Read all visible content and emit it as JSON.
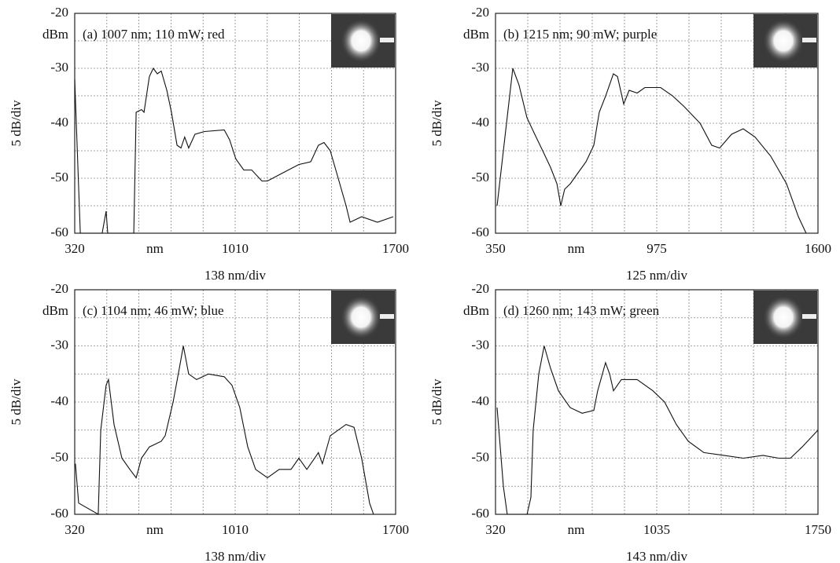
{
  "chart_data": [
    {
      "type": "line",
      "annotation": "(a) 1007 nm; 110 mW; red",
      "y_unit": "dBm",
      "x_unit": "nm",
      "ylabel": "5 dB/div",
      "xlabel": "138 nm/div",
      "color": "#111111",
      "grid": true,
      "xlim": [
        320,
        1700
      ],
      "xticks": [
        320,
        1010,
        1700
      ],
      "ylim": [
        -60,
        -20
      ],
      "yticks": [
        -60,
        -50,
        -40,
        -30,
        -20
      ],
      "x": [
        320,
        344,
        371,
        438,
        455,
        462,
        506,
        574,
        584,
        607,
        618,
        641,
        658,
        675,
        692,
        716,
        736,
        760,
        777,
        793,
        810,
        837,
        878,
        963,
        986,
        1013,
        1047,
        1081,
        1125,
        1149,
        1216,
        1284,
        1335,
        1368,
        1392,
        1419,
        1453,
        1487,
        1504,
        1554,
        1622,
        1690
      ],
      "values": [
        -32,
        -60,
        -60,
        -60,
        -56,
        -60,
        -60,
        -60,
        -38,
        -37.5,
        -38,
        -31.5,
        -30,
        -31,
        -30.5,
        -34,
        -38,
        -44,
        -44.5,
        -42.5,
        -44.5,
        -42,
        -41.5,
        -41.2,
        -43,
        -46.5,
        -48.5,
        -48.5,
        -50.5,
        -50.5,
        -49,
        -47.5,
        -47,
        -44,
        -43.5,
        -45,
        -50,
        -55,
        -58,
        -57,
        -58,
        -57
      ]
    },
    {
      "type": "line",
      "annotation": "(b) 1215 nm; 90 mW; purple",
      "y_unit": "dBm",
      "x_unit": "nm",
      "ylabel": "5 dB/div",
      "xlabel": "125 nm/div",
      "color": "#111111",
      "grid": true,
      "xlim": [
        350,
        1600
      ],
      "xticks": [
        350,
        975,
        1600
      ],
      "ylim": [
        -60,
        -20
      ],
      "yticks": [
        -60,
        -50,
        -40,
        -30,
        -20
      ],
      "x": [
        356,
        417,
        441,
        472,
        502,
        533,
        563,
        588,
        603,
        618,
        640,
        670,
        701,
        731,
        752,
        777,
        807,
        823,
        847,
        868,
        899,
        929,
        990,
        1036,
        1082,
        1143,
        1188,
        1219,
        1265,
        1310,
        1356,
        1417,
        1478,
        1524,
        1554
      ],
      "values": [
        -55,
        -30,
        -33,
        -39,
        -42,
        -45,
        -48,
        -51,
        -55,
        -52,
        -51,
        -49,
        -47,
        -44,
        -38,
        -35,
        -31,
        -31.5,
        -36.5,
        -34,
        -34.5,
        -33.5,
        -33.5,
        -35,
        -37,
        -40,
        -44,
        -44.5,
        -42,
        -41,
        -42.5,
        -46,
        -51,
        -57,
        -60
      ]
    },
    {
      "type": "line",
      "annotation": "(c) 1104 nm; 46 mW; blue",
      "y_unit": "dBm",
      "x_unit": "nm",
      "ylabel": "5 dB/div",
      "xlabel": "138 nm/div",
      "color": "#111111",
      "grid": true,
      "xlim": [
        320,
        1700
      ],
      "xticks": [
        320,
        1010,
        1700
      ],
      "ylim": [
        -60,
        -20
      ],
      "yticks": [
        -60,
        -50,
        -40,
        -30,
        -20
      ],
      "x": [
        323,
        337,
        421,
        432,
        455,
        465,
        489,
        523,
        557,
        584,
        607,
        641,
        692,
        709,
        743,
        770,
        787,
        810,
        844,
        895,
        963,
        996,
        1030,
        1064,
        1098,
        1149,
        1199,
        1250,
        1284,
        1318,
        1352,
        1368,
        1385,
        1419,
        1487,
        1521,
        1554,
        1588,
        1605
      ],
      "values": [
        -51,
        -58,
        -60,
        -45,
        -37,
        -36,
        -44,
        -50,
        -52,
        -53.5,
        -50,
        -48,
        -47,
        -46,
        -40,
        -34,
        -30,
        -35,
        -36,
        -35,
        -35.5,
        -37,
        -41,
        -48,
        -52,
        -53.5,
        -52,
        -52,
        -50,
        -52,
        -50,
        -49,
        -51,
        -46,
        -44,
        -44.5,
        -50,
        -58,
        -60
      ]
    },
    {
      "type": "line",
      "annotation": "(d) 1260 nm; 143 mW; green",
      "y_unit": "dBm",
      "x_unit": "nm",
      "ylabel": "5 dB/div",
      "xlabel": "143 nm/div",
      "color": "#111111",
      "grid": true,
      "xlim": [
        320,
        1750
      ],
      "xticks": [
        320,
        1035,
        1750
      ],
      "ylim": [
        -60,
        -20
      ],
      "yticks": [
        -60,
        -50,
        -40,
        -30,
        -20
      ],
      "x": [
        327,
        355,
        372,
        460,
        477,
        487,
        512,
        536,
        564,
        599,
        651,
        704,
        756,
        773,
        808,
        826,
        843,
        878,
        948,
        1018,
        1070,
        1122,
        1175,
        1244,
        1332,
        1419,
        1506,
        1576,
        1628,
        1680,
        1750
      ],
      "values": [
        -41,
        -55,
        -60,
        -60,
        -57,
        -45,
        -35,
        -30,
        -34,
        -38,
        -41,
        -42,
        -41.5,
        -38,
        -33,
        -35,
        -38,
        -36,
        -36,
        -38,
        -40,
        -44,
        -47,
        -49,
        -49.5,
        -50,
        -49.5,
        -50,
        -50,
        -48,
        -45
      ]
    }
  ]
}
